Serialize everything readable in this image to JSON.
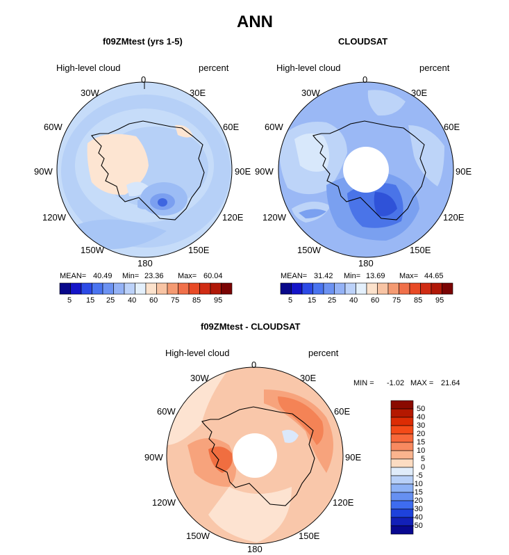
{
  "main_title": "ANN",
  "chart_data": [
    {
      "type": "filled-contour polar map",
      "title": "f09ZMtest (yrs 1-5)",
      "variable": "High-level cloud",
      "units": "percent",
      "lon_labels": [
        "0",
        "30E",
        "60E",
        "90E",
        "120E",
        "150E",
        "180",
        "150W",
        "120W",
        "90W",
        "60W",
        "30W"
      ],
      "stats": {
        "mean_label": "MEAN=",
        "mean": "40.49",
        "min_label": "Min=",
        "min": "23.36",
        "max_label": "Max=",
        "max": "60.04"
      },
      "colorbar_levels": [
        "5",
        "15",
        "25",
        "40",
        "60",
        "75",
        "85",
        "95"
      ],
      "pole_hole": false
    },
    {
      "type": "filled-contour polar map",
      "title": "CLOUDSAT",
      "variable": "High-level cloud",
      "units": "percent",
      "lon_labels": [
        "0",
        "30E",
        "60E",
        "90E",
        "120E",
        "150E",
        "180",
        "150W",
        "120W",
        "90W",
        "60W",
        "30W"
      ],
      "stats": {
        "mean_label": "MEAN=",
        "mean": "31.42",
        "min_label": "Min=",
        "min": "13.69",
        "max_label": "Max=",
        "max": "44.65"
      },
      "colorbar_levels": [
        "5",
        "15",
        "25",
        "40",
        "60",
        "75",
        "85",
        "95"
      ],
      "pole_hole": true
    },
    {
      "type": "filled-contour polar map (difference)",
      "title": "f09ZMtest - CLOUDSAT",
      "variable": "High-level cloud",
      "units": "percent",
      "lon_labels": [
        "0",
        "30E",
        "60E",
        "90E",
        "120E",
        "150E",
        "180",
        "150W",
        "120W",
        "90W",
        "60W",
        "30W"
      ],
      "stats": {
        "min_label": "MIN =",
        "min": "-1.02",
        "max_label": "MAX =",
        "max": "21.64"
      },
      "colorbar_levels": [
        "50",
        "40",
        "30",
        "20",
        "15",
        "10",
        "5",
        "0",
        "-5",
        "-10",
        "-15",
        "-20",
        "-30",
        "-40",
        "-50"
      ],
      "pole_hole": true
    }
  ],
  "colors": {
    "seq_colorbar": [
      "#08088a",
      "#1414c8",
      "#2c4ae6",
      "#4a74f0",
      "#6c92f2",
      "#94b2f6",
      "#bcd2fa",
      "#e4f0fc",
      "#fce2cc",
      "#f8c4a4",
      "#f49a72",
      "#f0704a",
      "#e84a26",
      "#d02c14",
      "#b01808",
      "#7a0404"
    ],
    "diff_colorbar": [
      "#8a0a00",
      "#b41800",
      "#dc2c04",
      "#f44a18",
      "#f8683a",
      "#f88a60",
      "#fab48e",
      "#fcdcc2",
      "#e0ecfa",
      "#b8d0f8",
      "#8eb2f6",
      "#6690f2",
      "#3e6cf0",
      "#1e42dc",
      "#1220b8",
      "#080890"
    ],
    "panel1": {
      "base": "#b6d0f7",
      "ocean_outer": "#c6dcf9",
      "pale": "#d6e6fb",
      "peach": "#fde5d2",
      "mid": "#9cbcf5",
      "dark": "#7b9ff0",
      "darkest": "#3f66e0"
    },
    "panel2": {
      "base": "#9ab8f5",
      "light": "#bdd4f8",
      "pale": "#d8e8fb",
      "mid": "#7aa0f0",
      "dark": "#4a74e8",
      "darkest": "#2f52d8"
    },
    "panel3": {
      "base": "#f9c7aa",
      "light": "#fde3d1",
      "mid": "#f7a37c",
      "dark": "#f48356",
      "darkest": "#f06e40",
      "blue": "#dbe8fb"
    }
  }
}
